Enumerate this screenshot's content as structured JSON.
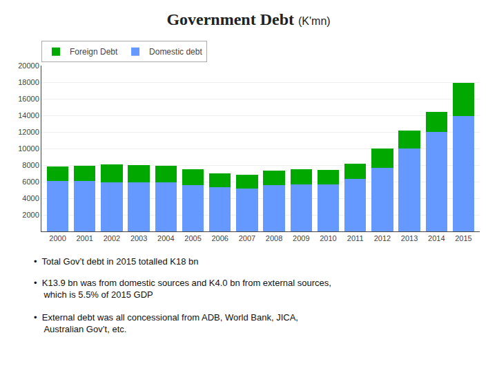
{
  "chart_data": {
    "type": "bar",
    "stacked": true,
    "title": "Government Debt",
    "subtitle": "(K'mn)",
    "categories": [
      "2000",
      "2001",
      "2002",
      "2003",
      "2004",
      "2005",
      "2006",
      "2007",
      "2008",
      "2009",
      "2010",
      "2011",
      "2012",
      "2013",
      "2014",
      "2015"
    ],
    "series": [
      {
        "name": "Domestic debt",
        "color": "#6699ff",
        "values": [
          6100,
          6100,
          5900,
          5900,
          5900,
          5600,
          5300,
          5200,
          5600,
          5700,
          5700,
          6300,
          7700,
          10000,
          12000,
          13900
        ]
      },
      {
        "name": "Foreign Debt",
        "color": "#00a800",
        "values": [
          1700,
          1800,
          2200,
          2100,
          2000,
          1900,
          1700,
          1600,
          1700,
          1800,
          1700,
          1900,
          2300,
          2200,
          2400,
          4000
        ]
      }
    ],
    "ylim": [
      0,
      20000
    ],
    "yticks": [
      2000,
      4000,
      6000,
      8000,
      10000,
      12000,
      14000,
      16000,
      18000,
      20000
    ],
    "grid": true,
    "legend": "upper left",
    "annotations": [
      "•  Total Gov’t debt in 2015 totalled K18 bn",
      "•  K13.9 bn was from domestic sources and K4.0 bn from external sources,\nwhich is 5.5% of 2015 GDP",
      "•  External debt was all concessional from ADB, World Bank, JICA,\nAustralian Gov’t, etc."
    ]
  }
}
